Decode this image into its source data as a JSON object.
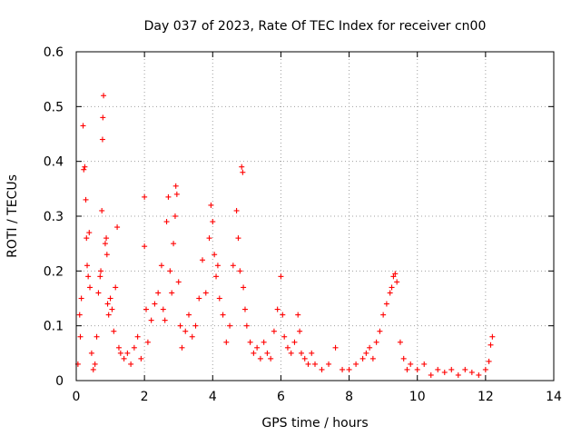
{
  "chart_data": {
    "type": "scatter",
    "title": "Day 037 of 2023, Rate Of TEC Index for receiver cn00",
    "xlabel": "GPS time / hours",
    "ylabel": "ROTI / TECUs",
    "xlim": [
      0,
      14
    ],
    "ylim": [
      0,
      0.6
    ],
    "x_ticks": [
      0,
      2,
      4,
      6,
      8,
      10,
      12,
      14
    ],
    "x_tick_labels": [
      "0",
      "2",
      "4",
      "6",
      "8",
      "10",
      "12",
      "14"
    ],
    "y_ticks": [
      0,
      0.1,
      0.2,
      0.3,
      0.4,
      0.5,
      0.6
    ],
    "y_tick_labels": [
      "0",
      "0.1",
      "0.2",
      "0.3",
      "0.4",
      "0.5",
      "0.6"
    ],
    "grid": true,
    "marker": "plus",
    "color": "#ff0000",
    "series": [
      {
        "points": [
          [
            0.05,
            0.03
          ],
          [
            0.1,
            0.12
          ],
          [
            0.12,
            0.08
          ],
          [
            0.15,
            0.15
          ],
          [
            0.2,
            0.465
          ],
          [
            0.22,
            0.385
          ],
          [
            0.25,
            0.39
          ],
          [
            0.28,
            0.33
          ],
          [
            0.3,
            0.26
          ],
          [
            0.32,
            0.21
          ],
          [
            0.35,
            0.19
          ],
          [
            0.38,
            0.27
          ],
          [
            0.4,
            0.17
          ],
          [
            0.45,
            0.05
          ],
          [
            0.5,
            0.02
          ],
          [
            0.55,
            0.03
          ],
          [
            0.6,
            0.08
          ],
          [
            0.65,
            0.16
          ],
          [
            0.7,
            0.19
          ],
          [
            0.72,
            0.2
          ],
          [
            0.75,
            0.31
          ],
          [
            0.77,
            0.44
          ],
          [
            0.78,
            0.48
          ],
          [
            0.8,
            0.52
          ],
          [
            0.85,
            0.25
          ],
          [
            0.88,
            0.26
          ],
          [
            0.9,
            0.23
          ],
          [
            0.92,
            0.14
          ],
          [
            0.95,
            0.12
          ],
          [
            1.0,
            0.15
          ],
          [
            1.05,
            0.13
          ],
          [
            1.1,
            0.09
          ],
          [
            1.15,
            0.17
          ],
          [
            1.2,
            0.28
          ],
          [
            1.25,
            0.06
          ],
          [
            1.3,
            0.05
          ],
          [
            1.4,
            0.04
          ],
          [
            1.5,
            0.05
          ],
          [
            1.6,
            0.03
          ],
          [
            1.7,
            0.06
          ],
          [
            1.8,
            0.08
          ],
          [
            1.9,
            0.04
          ],
          [
            2.0,
            0.245
          ],
          [
            2.0,
            0.335
          ],
          [
            2.05,
            0.13
          ],
          [
            2.1,
            0.07
          ],
          [
            2.2,
            0.11
          ],
          [
            2.3,
            0.14
          ],
          [
            2.4,
            0.16
          ],
          [
            2.5,
            0.21
          ],
          [
            2.55,
            0.13
          ],
          [
            2.6,
            0.11
          ],
          [
            2.65,
            0.29
          ],
          [
            2.7,
            0.335
          ],
          [
            2.75,
            0.2
          ],
          [
            2.8,
            0.16
          ],
          [
            2.85,
            0.25
          ],
          [
            2.9,
            0.3
          ],
          [
            2.92,
            0.355
          ],
          [
            2.95,
            0.34
          ],
          [
            3.0,
            0.18
          ],
          [
            3.05,
            0.1
          ],
          [
            3.1,
            0.06
          ],
          [
            3.2,
            0.09
          ],
          [
            3.3,
            0.12
          ],
          [
            3.4,
            0.08
          ],
          [
            3.5,
            0.1
          ],
          [
            3.6,
            0.15
          ],
          [
            3.7,
            0.22
          ],
          [
            3.8,
            0.16
          ],
          [
            3.9,
            0.26
          ],
          [
            3.95,
            0.32
          ],
          [
            4.0,
            0.29
          ],
          [
            4.05,
            0.23
          ],
          [
            4.1,
            0.19
          ],
          [
            4.15,
            0.21
          ],
          [
            4.2,
            0.15
          ],
          [
            4.3,
            0.12
          ],
          [
            4.4,
            0.07
          ],
          [
            4.5,
            0.1
          ],
          [
            4.6,
            0.21
          ],
          [
            4.7,
            0.31
          ],
          [
            4.75,
            0.26
          ],
          [
            4.8,
            0.2
          ],
          [
            4.85,
            0.39
          ],
          [
            4.88,
            0.38
          ],
          [
            4.9,
            0.17
          ],
          [
            4.95,
            0.13
          ],
          [
            5.0,
            0.1
          ],
          [
            5.1,
            0.07
          ],
          [
            5.2,
            0.05
          ],
          [
            5.3,
            0.06
          ],
          [
            5.4,
            0.04
          ],
          [
            5.5,
            0.07
          ],
          [
            5.6,
            0.05
          ],
          [
            5.7,
            0.04
          ],
          [
            5.8,
            0.09
          ],
          [
            5.9,
            0.13
          ],
          [
            6.0,
            0.19
          ],
          [
            6.05,
            0.12
          ],
          [
            6.1,
            0.08
          ],
          [
            6.2,
            0.06
          ],
          [
            6.3,
            0.05
          ],
          [
            6.4,
            0.07
          ],
          [
            6.5,
            0.12
          ],
          [
            6.55,
            0.09
          ],
          [
            6.6,
            0.05
          ],
          [
            6.7,
            0.04
          ],
          [
            6.8,
            0.03
          ],
          [
            6.9,
            0.05
          ],
          [
            7.0,
            0.03
          ],
          [
            7.2,
            0.02
          ],
          [
            7.4,
            0.03
          ],
          [
            7.6,
            0.06
          ],
          [
            7.8,
            0.02
          ],
          [
            8.0,
            0.02
          ],
          [
            8.2,
            0.03
          ],
          [
            8.4,
            0.04
          ],
          [
            8.5,
            0.05
          ],
          [
            8.6,
            0.06
          ],
          [
            8.7,
            0.04
          ],
          [
            8.8,
            0.07
          ],
          [
            8.9,
            0.09
          ],
          [
            9.0,
            0.12
          ],
          [
            9.1,
            0.14
          ],
          [
            9.2,
            0.16
          ],
          [
            9.25,
            0.17
          ],
          [
            9.3,
            0.19
          ],
          [
            9.35,
            0.195
          ],
          [
            9.4,
            0.18
          ],
          [
            9.5,
            0.07
          ],
          [
            9.6,
            0.04
          ],
          [
            9.7,
            0.02
          ],
          [
            9.8,
            0.03
          ],
          [
            10.0,
            0.02
          ],
          [
            10.2,
            0.03
          ],
          [
            10.4,
            0.01
          ],
          [
            10.6,
            0.02
          ],
          [
            10.8,
            0.015
          ],
          [
            11.0,
            0.02
          ],
          [
            11.2,
            0.01
          ],
          [
            11.4,
            0.02
          ],
          [
            11.6,
            0.015
          ],
          [
            11.8,
            0.01
          ],
          [
            12.0,
            0.02
          ],
          [
            12.1,
            0.035
          ],
          [
            12.15,
            0.065
          ],
          [
            12.2,
            0.08
          ]
        ]
      }
    ]
  }
}
